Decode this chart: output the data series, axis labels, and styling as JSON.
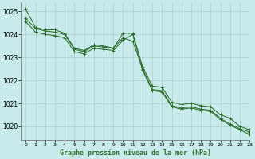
{
  "title": "Graphe pression niveau de la mer (hPa)",
  "background_color": "#c8eaea",
  "grid_color": "#b0d4d4",
  "line_color": "#2d6e2d",
  "xlim": [
    -0.5,
    23
  ],
  "ylim": [
    1019.4,
    1025.4
  ],
  "yticks": [
    1020,
    1021,
    1022,
    1023,
    1024,
    1025
  ],
  "ytick_labels": [
    "1020",
    "1021",
    "1022",
    "1023",
    "1024",
    "1025"
  ],
  "xtick_labels": [
    "0",
    "1",
    "2",
    "3",
    "4",
    "5",
    "6",
    "7",
    "8",
    "9",
    "10",
    "11",
    "12",
    "13",
    "14",
    "15",
    "16",
    "17",
    "18",
    "19",
    "20",
    "21",
    "22",
    "23"
  ],
  "series": [
    {
      "x": [
        0,
        1,
        2,
        3,
        4,
        5,
        6,
        7,
        8,
        9,
        10,
        11,
        12,
        13,
        14,
        15,
        16,
        17,
        18,
        19,
        20,
        21,
        22,
        23
      ],
      "y": [
        1025.1,
        1024.3,
        1024.2,
        1024.2,
        1024.05,
        1023.4,
        1023.3,
        1023.55,
        1023.5,
        1023.4,
        1024.05,
        1024.05,
        1022.6,
        1021.75,
        1021.7,
        1021.05,
        1020.95,
        1021.0,
        1020.9,
        1020.85,
        1020.5,
        1020.35,
        1020.0,
        1019.85
      ]
    },
    {
      "x": [
        0,
        1,
        2,
        3,
        4,
        5,
        6,
        7,
        8,
        9,
        10,
        11,
        12,
        13,
        14,
        15,
        16,
        17,
        18,
        19,
        20,
        21,
        22,
        23
      ],
      "y": [
        1024.7,
        1024.25,
        1024.15,
        1024.1,
        1024.0,
        1023.35,
        1023.25,
        1023.5,
        1023.45,
        1023.4,
        1023.85,
        1023.7,
        1022.5,
        1021.6,
        1021.55,
        1020.9,
        1020.8,
        1020.85,
        1020.75,
        1020.7,
        1020.35,
        1020.1,
        1019.9,
        1019.75
      ]
    },
    {
      "x": [
        0,
        1,
        2,
        3,
        4,
        5,
        6,
        7,
        8,
        9,
        10,
        11,
        12,
        13,
        14,
        15,
        16,
        17,
        18,
        19,
        20,
        21,
        22,
        23
      ],
      "y": [
        1024.55,
        1024.1,
        1024.0,
        1023.95,
        1023.85,
        1023.25,
        1023.15,
        1023.4,
        1023.35,
        1023.3,
        1023.75,
        1024.0,
        1022.45,
        1021.55,
        1021.5,
        1020.85,
        1020.75,
        1020.8,
        1020.7,
        1020.65,
        1020.3,
        1020.05,
        1019.85,
        1019.65
      ]
    }
  ]
}
